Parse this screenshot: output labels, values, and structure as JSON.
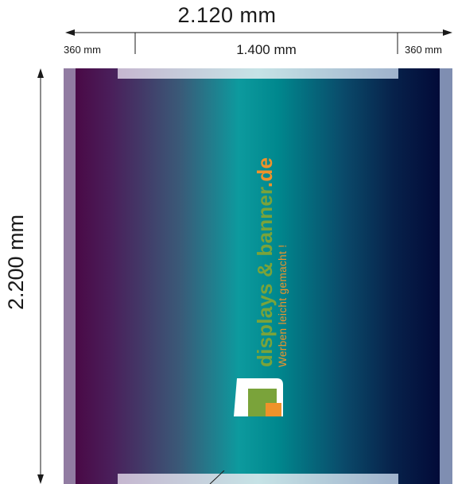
{
  "dimensions": {
    "total_width": "2.120 mm",
    "left_panel": "360 mm",
    "center_panel": "1.400 mm",
    "right_panel": "360 mm",
    "height": "2.200 mm"
  },
  "logo": {
    "brand_part1": "displays",
    "brand_amp": " & ",
    "brand_part2": "banner",
    "brand_tld": ".de",
    "tagline": "Werben leicht gemacht !"
  },
  "colors": {
    "line": "#1a1a1a",
    "logo_green": "#7aa33a",
    "logo_orange": "#f0922a"
  }
}
